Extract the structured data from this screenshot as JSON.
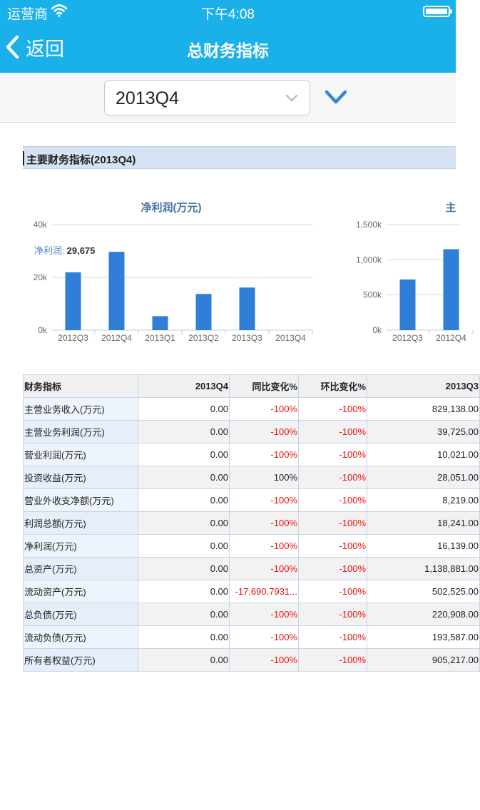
{
  "status_bar": {
    "carrier": "运营商",
    "time": "下午4:08"
  },
  "nav": {
    "back_label": "返回",
    "title": "总财务指标"
  },
  "selector": {
    "value": "2013Q4"
  },
  "section": {
    "title": "主要财务指标(2013Q4)"
  },
  "colors": {
    "accent": "#1ab0ea",
    "bar": "#2f7ed8",
    "negative": "#e8120c"
  },
  "chart_data": [
    {
      "type": "bar",
      "title": "净利润(万元)",
      "categories": [
        "2012Q3",
        "2012Q4",
        "2013Q1",
        "2013Q2",
        "2013Q3",
        "2013Q4"
      ],
      "values": [
        21900,
        29675,
        5300,
        13700,
        16139,
        0
      ],
      "ylim": [
        0,
        40000
      ],
      "y_ticks": [
        "0k",
        "20k",
        "40k"
      ],
      "tooltip": {
        "label": "净利润:",
        "value": "29,675"
      },
      "grid": true
    },
    {
      "type": "bar",
      "title": "主",
      "categories": [
        "2012Q3",
        "2012Q4"
      ],
      "values": [
        720000,
        1150000
      ],
      "ylim": [
        0,
        1500000
      ],
      "y_ticks": [
        "0k",
        "500k",
        "1,000k",
        "1,500k"
      ],
      "grid": true
    }
  ],
  "table": {
    "headers": [
      "财务指标",
      "2013Q4",
      "同比变化%",
      "环比变化%",
      "2013Q3"
    ],
    "rows": [
      [
        "主营业务收入(万元)",
        "0.00",
        "-100%",
        "-100%",
        "829,138.00"
      ],
      [
        "主营业务利润(万元)",
        "0.00",
        "-100%",
        "-100%",
        "39,725.00"
      ],
      [
        "营业利润(万元)",
        "0.00",
        "-100%",
        "-100%",
        "10,021.00"
      ],
      [
        "投资收益(万元)",
        "0.00",
        "100%",
        "-100%",
        "28,051.00"
      ],
      [
        "营业外收支净额(万元)",
        "0.00",
        "-100%",
        "-100%",
        "8,219.00"
      ],
      [
        "利润总额(万元)",
        "0.00",
        "-100%",
        "-100%",
        "18,241.00"
      ],
      [
        "净利润(万元)",
        "0.00",
        "-100%",
        "-100%",
        "16,139.00"
      ],
      [
        "总资产(万元)",
        "0.00",
        "-100%",
        "-100%",
        "1,138,881.00"
      ],
      [
        "流动资产(万元)",
        "0.00",
        "-17,690.7931...",
        "-100%",
        "502,525.00"
      ],
      [
        "总负债(万元)",
        "0.00",
        "-100%",
        "-100%",
        "220,908.00"
      ],
      [
        "流动负债(万元)",
        "0.00",
        "-100%",
        "-100%",
        "193,587.00"
      ],
      [
        "所有者权益(万元)",
        "0.00",
        "-100%",
        "-100%",
        "905,217.00"
      ]
    ]
  }
}
